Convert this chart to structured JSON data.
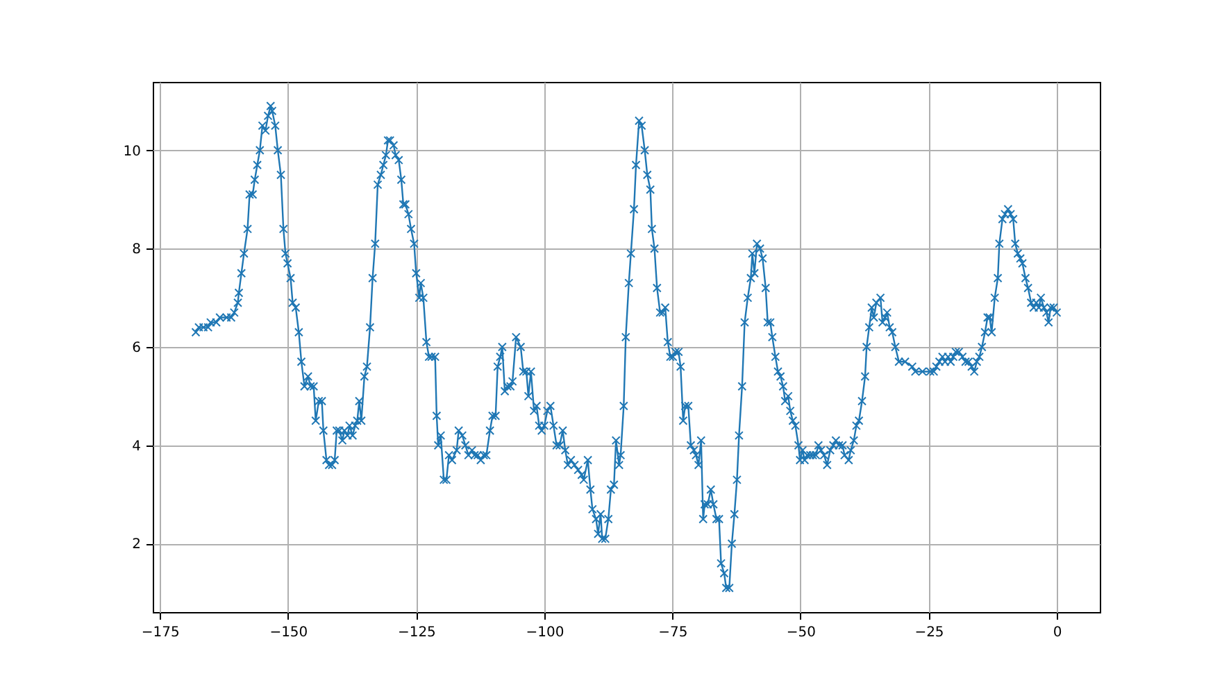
{
  "chart_data": {
    "type": "line",
    "marker": "cross",
    "line_style": "solid",
    "grid": true,
    "xlim": [
      -176.4,
      8.4
    ],
    "ylim": [
      0.61,
      11.39
    ],
    "xticks": [
      -175,
      -150,
      -125,
      -100,
      -75,
      -50,
      -25,
      0
    ],
    "yticks": [
      2,
      4,
      6,
      8,
      10
    ],
    "series": [
      {
        "color": "#1f77b4",
        "x": [
          -168.0,
          -167.4,
          -166.5,
          -165.6,
          -165.1,
          -164.0,
          -163.3,
          -162.0,
          -161.1,
          -160.5,
          -159.8,
          -159.6,
          -159.1,
          -158.6,
          -157.9,
          -157.5,
          -156.9,
          -156.5,
          -156.0,
          -155.5,
          -155.0,
          -154.4,
          -153.9,
          -153.4,
          -153.1,
          -152.5,
          -152.0,
          -151.4,
          -150.9,
          -150.5,
          -150.1,
          -149.5,
          -149.1,
          -148.5,
          -147.9,
          -147.4,
          -146.8,
          -146.1,
          -145.6,
          -145.0,
          -144.6,
          -144.0,
          -143.4,
          -143.1,
          -142.5,
          -142.0,
          -141.4,
          -140.9,
          -140.5,
          -140.0,
          -139.4,
          -139.0,
          -138.4,
          -138.0,
          -137.4,
          -136.9,
          -136.5,
          -136.1,
          -135.7,
          -135.1,
          -134.6,
          -134.0,
          -133.5,
          -133.0,
          -132.5,
          -131.9,
          -131.4,
          -130.9,
          -130.5,
          -130.1,
          -129.4,
          -129.0,
          -128.4,
          -127.9,
          -127.5,
          -127.1,
          -126.5,
          -126.0,
          -125.4,
          -125.0,
          -124.4,
          -124.1,
          -123.6,
          -123.0,
          -122.5,
          -122.0,
          -121.3,
          -121.0,
          -120.7,
          -120.2,
          -119.6,
          -119.1,
          -118.6,
          -118.0,
          -117.1,
          -116.7,
          -116.0,
          -115.4,
          -114.8,
          -114.1,
          -113.6,
          -113.0,
          -112.4,
          -111.8,
          -111.3,
          -110.6,
          -110.1,
          -109.5,
          -109.1,
          -108.6,
          -108.2,
          -107.7,
          -107.2,
          -106.6,
          -106.2,
          -105.5,
          -104.6,
          -104.1,
          -103.5,
          -103.1,
          -102.6,
          -102.0,
          -101.5,
          -101.0,
          -100.5,
          -100.0,
          -99.4,
          -98.8,
          -98.2,
          -97.6,
          -97.0,
          -96.4,
          -95.9,
          -95.4,
          -94.8,
          -94.1,
          -93.4,
          -92.7,
          -92.3,
          -91.5,
          -91.0,
          -90.6,
          -89.9,
          -89.5,
          -89.0,
          -88.7,
          -88.1,
          -87.5,
          -87.0,
          -86.4,
          -86.0,
          -85.4,
          -85.1,
          -84.5,
          -84.1,
          -83.5,
          -83.1,
          -82.5,
          -82.1,
          -81.5,
          -81.0,
          -80.4,
          -79.9,
          -79.3,
          -79.0,
          -78.5,
          -78.0,
          -77.4,
          -76.9,
          -76.4,
          -75.9,
          -75.4,
          -74.9,
          -74.4,
          -73.8,
          -73.4,
          -72.9,
          -72.5,
          -71.9,
          -71.4,
          -70.8,
          -70.4,
          -69.9,
          -69.4,
          -69.0,
          -68.7,
          -68.1,
          -67.5,
          -67.0,
          -66.4,
          -65.9,
          -65.5,
          -64.9,
          -64.5,
          -63.9,
          -63.4,
          -62.9,
          -62.4,
          -62.0,
          -61.4,
          -60.9,
          -60.3,
          -59.7,
          -59.4,
          -59.0,
          -58.5,
          -57.9,
          -57.4,
          -56.8,
          -56.4,
          -55.9,
          -55.5,
          -54.9,
          -54.4,
          -53.9,
          -53.4,
          -53.0,
          -52.4,
          -52.0,
          -51.5,
          -51.0,
          -50.4,
          -50.1,
          -49.6,
          -49.2,
          -48.7,
          -48.1,
          -47.6,
          -47.0,
          -46.5,
          -46.0,
          -45.4,
          -44.8,
          -44.2,
          -43.6,
          -43.1,
          -42.5,
          -41.8,
          -41.4,
          -40.6,
          -40.2,
          -39.6,
          -39.1,
          -38.6,
          -38.0,
          -37.4,
          -37.1,
          -36.6,
          -36.1,
          -35.7,
          -35.2,
          -34.4,
          -34.0,
          -33.5,
          -33.1,
          -32.6,
          -32.1,
          -31.5,
          -30.8,
          -29.6,
          -28.2,
          -27.6,
          -26.2,
          -24.7,
          -24.0,
          -23.5,
          -22.9,
          -22.3,
          -21.8,
          -21.2,
          -20.7,
          -20.2,
          -19.7,
          -19.1,
          -18.4,
          -17.8,
          -17.2,
          -16.6,
          -16.1,
          -15.6,
          -15.1,
          -14.6,
          -14.0,
          -13.5,
          -13.1,
          -12.7,
          -12.1,
          -11.5,
          -11.2,
          -10.6,
          -10.1,
          -9.5,
          -9.0,
          -8.5,
          -8.1,
          -7.6,
          -7.1,
          -6.7,
          -6.1,
          -5.6,
          -5.0,
          -4.5,
          -4.0,
          -3.5,
          -3.1,
          -2.5,
          -2.0,
          -1.6,
          -1.2,
          -0.6,
          0.0
        ],
        "values": [
          6.3,
          6.4,
          6.4,
          6.4,
          6.5,
          6.5,
          6.6,
          6.6,
          6.6,
          6.7,
          6.9,
          7.1,
          7.5,
          7.9,
          8.4,
          9.1,
          9.1,
          9.4,
          9.7,
          10.0,
          10.5,
          10.4,
          10.7,
          10.9,
          10.8,
          10.5,
          10.0,
          9.5,
          8.4,
          7.9,
          7.7,
          7.4,
          6.9,
          6.8,
          6.3,
          5.7,
          5.2,
          5.4,
          5.2,
          5.2,
          4.5,
          4.9,
          4.9,
          4.3,
          3.7,
          3.6,
          3.6,
          3.7,
          4.3,
          4.3,
          4.1,
          4.3,
          4.2,
          4.4,
          4.2,
          4.4,
          4.5,
          4.9,
          4.5,
          5.4,
          5.6,
          6.4,
          7.4,
          8.1,
          9.3,
          9.5,
          9.7,
          9.9,
          10.2,
          10.2,
          10.1,
          9.9,
          9.8,
          9.4,
          8.9,
          8.9,
          8.7,
          8.4,
          8.1,
          7.5,
          7.0,
          7.3,
          7.0,
          6.1,
          5.8,
          5.8,
          5.8,
          4.6,
          4.0,
          4.2,
          3.3,
          3.3,
          3.8,
          3.7,
          3.9,
          4.3,
          4.2,
          4.0,
          3.8,
          3.9,
          3.8,
          3.8,
          3.7,
          3.8,
          3.8,
          4.3,
          4.6,
          4.6,
          5.6,
          5.8,
          6.0,
          5.1,
          5.2,
          5.2,
          5.3,
          6.2,
          6.0,
          5.5,
          5.5,
          5.0,
          5.5,
          4.7,
          4.8,
          4.4,
          4.3,
          4.4,
          4.7,
          4.8,
          4.4,
          4.0,
          4.0,
          4.3,
          3.9,
          3.6,
          3.7,
          3.6,
          3.5,
          3.4,
          3.3,
          3.7,
          3.1,
          2.7,
          2.5,
          2.2,
          2.6,
          2.1,
          2.1,
          2.5,
          3.1,
          3.2,
          4.1,
          3.6,
          3.8,
          4.8,
          6.2,
          7.3,
          7.9,
          8.8,
          9.7,
          10.6,
          10.5,
          10.0,
          9.5,
          9.2,
          8.4,
          8.0,
          7.2,
          6.7,
          6.7,
          6.8,
          6.1,
          5.8,
          5.8,
          5.9,
          5.9,
          5.6,
          4.5,
          4.8,
          4.8,
          4.0,
          3.9,
          3.8,
          3.6,
          4.1,
          2.5,
          2.8,
          2.8,
          3.1,
          2.8,
          2.5,
          2.5,
          1.6,
          1.4,
          1.1,
          1.1,
          2.0,
          2.6,
          3.3,
          4.2,
          5.2,
          6.5,
          7.0,
          7.4,
          7.9,
          7.5,
          8.1,
          8.0,
          7.8,
          7.2,
          6.5,
          6.5,
          6.2,
          5.8,
          5.5,
          5.4,
          5.2,
          4.9,
          5.0,
          4.7,
          4.5,
          4.4,
          4.0,
          3.7,
          3.9,
          3.7,
          3.8,
          3.8,
          3.8,
          3.8,
          4.0,
          3.9,
          3.8,
          3.6,
          3.9,
          4.0,
          4.1,
          4.0,
          4.0,
          3.8,
          3.7,
          3.9,
          4.1,
          4.4,
          4.5,
          4.9,
          5.4,
          6.0,
          6.4,
          6.8,
          6.6,
          6.9,
          7.0,
          6.5,
          6.6,
          6.7,
          6.4,
          6.3,
          6.0,
          5.7,
          5.7,
          5.6,
          5.5,
          5.5,
          5.5,
          5.5,
          5.6,
          5.7,
          5.8,
          5.7,
          5.8,
          5.7,
          5.8,
          5.9,
          5.9,
          5.8,
          5.7,
          5.7,
          5.6,
          5.5,
          5.7,
          5.8,
          6.0,
          6.3,
          6.6,
          6.6,
          6.3,
          7.0,
          7.4,
          8.1,
          8.6,
          8.7,
          8.8,
          8.7,
          8.6,
          8.1,
          7.9,
          7.8,
          7.7,
          7.4,
          7.2,
          6.9,
          6.8,
          6.9,
          6.8,
          7.0,
          6.8,
          6.7,
          6.5,
          6.8,
          6.8,
          6.7
        ]
      }
    ]
  }
}
